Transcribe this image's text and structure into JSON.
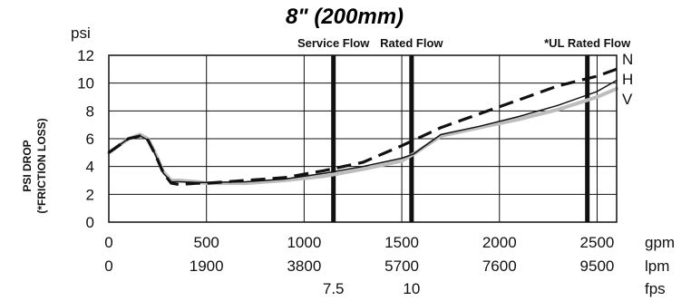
{
  "chart_data": {
    "type": "line",
    "title": "8\" (200mm)",
    "y_unit": "psi",
    "ylabel_lines": [
      "PSI DROP",
      "(*FRICTION LOSS)"
    ],
    "xlim": [
      0,
      2600
    ],
    "ylim": [
      0,
      12
    ],
    "y_ticks": [
      "0",
      "2",
      "4",
      "6",
      "8",
      "10",
      "12"
    ],
    "grid": true,
    "x_axes": [
      {
        "unit": "gpm",
        "ticks": [
          {
            "x": 0,
            "label": "0"
          },
          {
            "x": 500,
            "label": "500"
          },
          {
            "x": 1000,
            "label": "1000"
          },
          {
            "x": 1500,
            "label": "1500"
          },
          {
            "x": 2000,
            "label": "2000"
          },
          {
            "x": 2500,
            "label": "2500"
          }
        ]
      },
      {
        "unit": "lpm",
        "ticks": [
          {
            "x": 0,
            "label": "0"
          },
          {
            "x": 500,
            "label": "1900"
          },
          {
            "x": 1000,
            "label": "3800"
          },
          {
            "x": 1500,
            "label": "5700"
          },
          {
            "x": 2000,
            "label": "7600"
          },
          {
            "x": 2500,
            "label": "9500"
          }
        ]
      },
      {
        "unit": "fps",
        "ticks": [
          {
            "x": 1150,
            "label": "7.5"
          },
          {
            "x": 1550,
            "label": "10"
          }
        ]
      }
    ],
    "flow_markers": [
      {
        "label": "Service Flow",
        "x": 1150
      },
      {
        "label": "Rated Flow",
        "x": 1550
      },
      {
        "label": "*UL Rated Flow",
        "x": 2450
      }
    ],
    "series": [
      {
        "name": "N",
        "style": "dashed",
        "color": "#111111",
        "x": [
          0,
          50,
          100,
          160,
          200,
          240,
          280,
          320,
          360,
          450,
          500,
          700,
          900,
          1100,
          1300,
          1500,
          1700,
          1900,
          2100,
          2300,
          2500,
          2600
        ],
        "y": [
          5.0,
          5.5,
          6.0,
          6.2,
          5.9,
          4.8,
          3.5,
          2.8,
          2.7,
          2.8,
          2.8,
          3.0,
          3.2,
          3.7,
          4.3,
          5.5,
          6.8,
          7.8,
          8.8,
          9.8,
          10.5,
          11.0
        ]
      },
      {
        "name": "H",
        "style": "solid",
        "color": "#111111",
        "x": [
          0,
          50,
          100,
          160,
          200,
          240,
          280,
          320,
          360,
          450,
          500,
          700,
          900,
          1100,
          1300,
          1500,
          1560,
          1700,
          1900,
          2100,
          2300,
          2500,
          2600
        ],
        "y": [
          5.0,
          5.5,
          6.0,
          6.2,
          5.9,
          4.8,
          3.5,
          2.9,
          2.9,
          2.85,
          2.85,
          2.9,
          3.1,
          3.5,
          4.0,
          4.6,
          4.9,
          6.3,
          6.9,
          7.6,
          8.4,
          9.4,
          10.2
        ]
      },
      {
        "name": "V",
        "style": "solid-thick",
        "color": "#bdbdbd",
        "x": [
          0,
          50,
          100,
          160,
          200,
          240,
          280,
          320,
          360,
          450,
          500,
          700,
          900,
          1100,
          1300,
          1500,
          1560,
          1700,
          1900,
          2100,
          2300,
          2500,
          2600
        ],
        "y": [
          5.0,
          5.5,
          6.0,
          6.3,
          6.0,
          4.9,
          3.6,
          3.0,
          3.0,
          2.9,
          2.8,
          2.8,
          3.0,
          3.3,
          3.8,
          4.4,
          4.9,
          6.2,
          6.8,
          7.4,
          8.1,
          9.0,
          9.6
        ]
      }
    ]
  }
}
